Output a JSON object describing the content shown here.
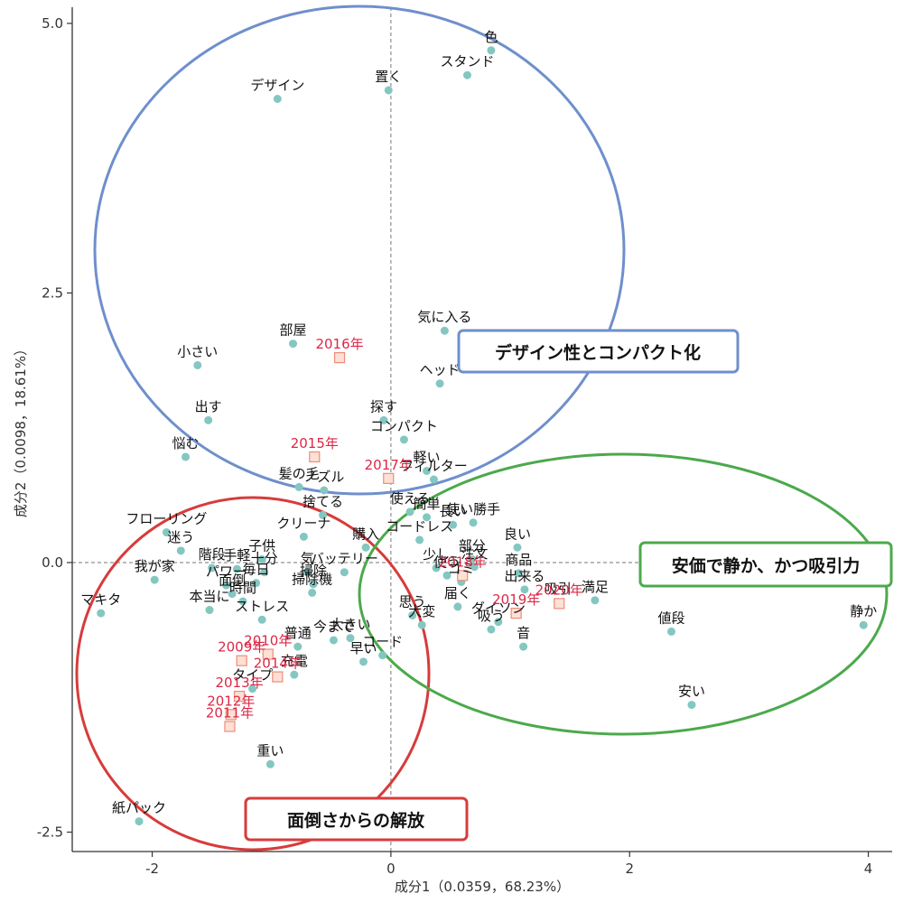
{
  "chart_data": {
    "type": "scatter",
    "xlabel": "成分1（0.0359，68.23%）",
    "ylabel": "成分2（0.0098，18.61%）",
    "xlim": [
      -2.67,
      4.2
    ],
    "ylim": [
      -2.68,
      5.15
    ],
    "xticks": [
      -2,
      0,
      2,
      4
    ],
    "xtick_labels": [
      "-2",
      "0",
      "2",
      "4"
    ],
    "yticks": [
      -2.5,
      0,
      2.5,
      5
    ],
    "ytick_labels": [
      "-2.5",
      "0.0",
      "2.5",
      "5.0"
    ],
    "reference_lines": {
      "x": 0,
      "y": 0,
      "style": "dashed"
    },
    "colors": {
      "word_point": "#84c7c1",
      "year_marker_fill": "#fde0d6",
      "year_marker_stroke": "#ee8c78",
      "year_text": "#dc2847",
      "blue": "#6f8fcc",
      "red": "#d83b3b",
      "green": "#4ca94c"
    },
    "words": [
      {
        "label": "色",
        "x": 0.84,
        "y": 4.75
      },
      {
        "label": "スタンド",
        "x": 0.64,
        "y": 4.52
      },
      {
        "label": "置く",
        "x": -0.02,
        "y": 4.38
      },
      {
        "label": "デザイン",
        "x": -0.95,
        "y": 4.3
      },
      {
        "label": "気に入る",
        "x": 0.45,
        "y": 2.15
      },
      {
        "label": "部屋",
        "x": -0.82,
        "y": 2.03
      },
      {
        "label": "小さい",
        "x": -1.62,
        "y": 1.83
      },
      {
        "label": "ヘッド",
        "x": 0.41,
        "y": 1.66
      },
      {
        "label": "探す",
        "x": -0.06,
        "y": 1.32
      },
      {
        "label": "出す",
        "x": -1.53,
        "y": 1.32
      },
      {
        "label": "コンパクト",
        "x": 0.11,
        "y": 1.14
      },
      {
        "label": "悩む",
        "x": -1.72,
        "y": 0.98
      },
      {
        "label": "軽い",
        "x": 0.3,
        "y": 0.85
      },
      {
        "label": "フィルター",
        "x": 0.36,
        "y": 0.77
      },
      {
        "label": "髪の毛",
        "x": -0.77,
        "y": 0.7
      },
      {
        "label": "ノズル",
        "x": -0.56,
        "y": 0.67
      },
      {
        "label": "使える",
        "x": 0.16,
        "y": 0.47
      },
      {
        "label": "簡単",
        "x": 0.3,
        "y": 0.42
      },
      {
        "label": "捨てる",
        "x": -0.57,
        "y": 0.44
      },
      {
        "label": "使い勝手",
        "x": 0.69,
        "y": 0.37
      },
      {
        "label": "長い",
        "x": 0.52,
        "y": 0.35
      },
      {
        "label": "クリーナ",
        "x": -0.73,
        "y": 0.24
      },
      {
        "label": "コードレス",
        "x": 0.24,
        "y": 0.21
      },
      {
        "label": "フローリング",
        "x": -1.88,
        "y": 0.28
      },
      {
        "label": "迷う",
        "x": -1.76,
        "y": 0.11
      },
      {
        "label": "良い",
        "x": 1.06,
        "y": 0.14
      },
      {
        "label": "購入",
        "x": -0.21,
        "y": 0.14
      },
      {
        "label": "部分",
        "x": 0.68,
        "y": 0.03
      },
      {
        "label": "子供",
        "x": -1.08,
        "y": 0.03
      },
      {
        "label": "手軽",
        "x": -1.29,
        "y": -0.06
      },
      {
        "label": "十分",
        "x": -1.06,
        "y": -0.09
      },
      {
        "label": "気",
        "x": -0.7,
        "y": -0.09
      },
      {
        "label": "バッテリー",
        "x": -0.39,
        "y": -0.09
      },
      {
        "label": "少し",
        "x": 0.38,
        "y": -0.05
      },
      {
        "label": "注文",
        "x": 0.7,
        "y": -0.04
      },
      {
        "label": "商品",
        "x": 1.07,
        "y": -0.1
      },
      {
        "label": "我が家",
        "x": -1.98,
        "y": -0.16
      },
      {
        "label": "階段",
        "x": -1.5,
        "y": -0.05
      },
      {
        "label": "使う",
        "x": 0.47,
        "y": -0.12
      },
      {
        "label": "ゴミ",
        "x": 0.59,
        "y": -0.18
      },
      {
        "label": "掃除",
        "x": -0.65,
        "y": -0.2
      },
      {
        "label": "パワー",
        "x": -1.38,
        "y": -0.21
      },
      {
        "label": "毎日",
        "x": -1.13,
        "y": -0.19
      },
      {
        "label": "出来る",
        "x": 1.12,
        "y": -0.25
      },
      {
        "label": "満足",
        "x": 1.71,
        "y": -0.35
      },
      {
        "label": "掃除機",
        "x": -0.66,
        "y": -0.28
      },
      {
        "label": "面倒",
        "x": -1.33,
        "y": -0.29
      },
      {
        "label": "吸引",
        "x": 1.4,
        "y": -0.37
      },
      {
        "label": "思う",
        "x": 0.18,
        "y": -0.49
      },
      {
        "label": "本当に",
        "x": -1.52,
        "y": -0.44
      },
      {
        "label": "時間",
        "x": -1.24,
        "y": -0.36
      },
      {
        "label": "届く",
        "x": 0.56,
        "y": -0.41
      },
      {
        "label": "大変",
        "x": 0.26,
        "y": -0.58
      },
      {
        "label": "マキタ",
        "x": -2.43,
        "y": -0.47
      },
      {
        "label": "静か",
        "x": 3.96,
        "y": -0.58
      },
      {
        "label": "ストレス",
        "x": -1.08,
        "y": -0.53
      },
      {
        "label": "値段",
        "x": 2.35,
        "y": -0.64
      },
      {
        "label": "ダイソン",
        "x": 0.9,
        "y": -0.55
      },
      {
        "label": "吸う",
        "x": 0.84,
        "y": -0.62
      },
      {
        "label": "今まで",
        "x": -0.48,
        "y": -0.72
      },
      {
        "label": "大きい",
        "x": -0.34,
        "y": -0.7
      },
      {
        "label": "音",
        "x": 1.11,
        "y": -0.78
      },
      {
        "label": "普通",
        "x": -0.78,
        "y": -0.78
      },
      {
        "label": "コード",
        "x": -0.07,
        "y": -0.86
      },
      {
        "label": "早い",
        "x": -0.23,
        "y": -0.92
      },
      {
        "label": "充電",
        "x": -0.81,
        "y": -1.04
      },
      {
        "label": "タイプ",
        "x": -1.16,
        "y": -1.17
      },
      {
        "label": "安い",
        "x": 2.52,
        "y": -1.32
      },
      {
        "label": "重い",
        "x": -1.01,
        "y": -1.87
      },
      {
        "label": "紙パック",
        "x": -2.11,
        "y": -2.4
      }
    ],
    "years": [
      {
        "label": "2009年",
        "x": -1.25,
        "y": -0.91
      },
      {
        "label": "2010年",
        "x": -1.03,
        "y": -0.85
      },
      {
        "label": "2011年",
        "x": -1.35,
        "y": -1.52
      },
      {
        "label": "2012年",
        "x": -1.34,
        "y": -1.41
      },
      {
        "label": "2013年",
        "x": -1.27,
        "y": -1.24
      },
      {
        "label": "2014年",
        "x": -0.95,
        "y": -1.06
      },
      {
        "label": "2015年",
        "x": -0.64,
        "y": 0.98
      },
      {
        "label": "2016年",
        "x": -0.43,
        "y": 1.9
      },
      {
        "label": "2017年",
        "x": -0.02,
        "y": 0.78
      },
      {
        "label": "2018年",
        "x": 0.6,
        "y": -0.12
      },
      {
        "label": "2019年",
        "x": 1.05,
        "y": -0.47
      },
      {
        "label": "2020年",
        "x": 1.41,
        "y": -0.38
      }
    ],
    "clusters": [
      {
        "name": "blue",
        "label": "デザイン性とコンパクト化"
      },
      {
        "name": "red",
        "label": "面倒さからの解放"
      },
      {
        "name": "green",
        "label": "安価で静か、かつ吸引力"
      }
    ]
  }
}
